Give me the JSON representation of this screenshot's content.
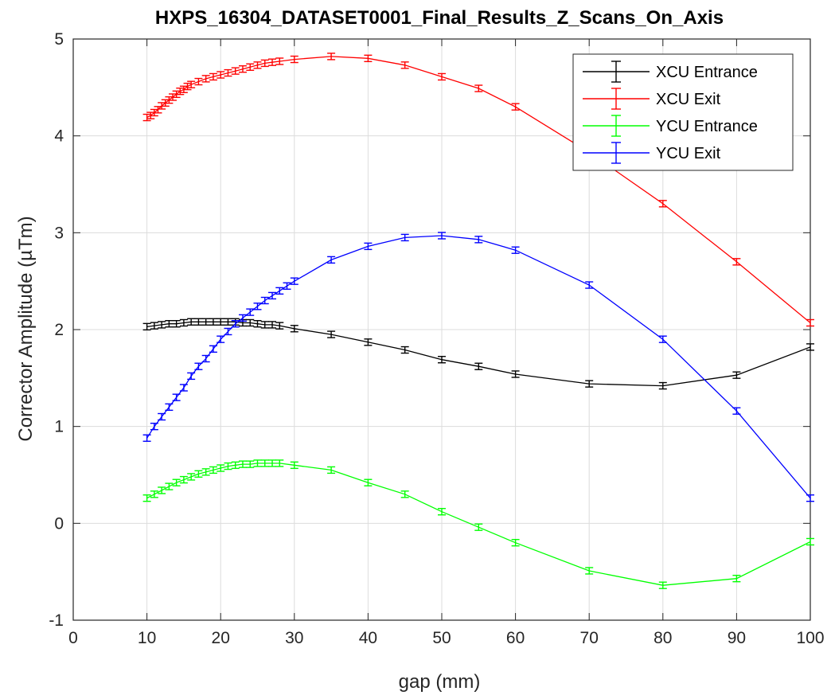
{
  "chart_data": {
    "type": "line",
    "title": "HXPS_16304_DATASET0001_Final_Results_Z_Scans_On_Axis",
    "xlabel": "gap (mm)",
    "ylabel": "Corrector Amplitude (µTm)",
    "xlim": [
      0,
      100
    ],
    "ylim": [
      -1,
      5
    ],
    "xticks": [
      0,
      10,
      20,
      30,
      40,
      50,
      60,
      70,
      80,
      90,
      100
    ],
    "yticks": [
      -1,
      0,
      1,
      2,
      3,
      4,
      5
    ],
    "grid": true,
    "legend_position": "top-right",
    "series": [
      {
        "name": "XCU Entrance",
        "color": "#000000",
        "x": [
          10,
          11,
          12,
          13,
          14,
          15,
          16,
          17,
          18,
          19,
          20,
          21,
          22,
          23,
          24,
          25,
          26,
          27,
          28,
          30,
          35,
          40,
          45,
          50,
          55,
          60,
          70,
          80,
          90,
          100
        ],
        "y": [
          2.03,
          2.04,
          2.05,
          2.06,
          2.06,
          2.07,
          2.08,
          2.08,
          2.08,
          2.08,
          2.08,
          2.08,
          2.08,
          2.07,
          2.07,
          2.06,
          2.05,
          2.05,
          2.04,
          2.01,
          1.95,
          1.87,
          1.79,
          1.69,
          1.62,
          1.54,
          1.44,
          1.42,
          1.53,
          1.82
        ]
      },
      {
        "name": "XCU Exit",
        "color": "#ff0000",
        "x": [
          10,
          10.5,
          11,
          11.5,
          12,
          12.5,
          13,
          13.5,
          14,
          14.5,
          15,
          15.5,
          16,
          17,
          18,
          19,
          20,
          21,
          22,
          23,
          24,
          25,
          26,
          27,
          28,
          30,
          35,
          40,
          45,
          50,
          55,
          60,
          70,
          80,
          90,
          100
        ],
        "y": [
          4.19,
          4.21,
          4.24,
          4.27,
          4.31,
          4.34,
          4.37,
          4.4,
          4.43,
          4.46,
          4.48,
          4.51,
          4.53,
          4.56,
          4.59,
          4.61,
          4.63,
          4.65,
          4.67,
          4.69,
          4.71,
          4.73,
          4.75,
          4.76,
          4.77,
          4.79,
          4.82,
          4.8,
          4.73,
          4.61,
          4.49,
          4.3,
          3.83,
          3.3,
          2.7,
          2.07
        ]
      },
      {
        "name": "YCU Entrance",
        "color": "#00ff00",
        "x": [
          10,
          11,
          12,
          13,
          14,
          15,
          16,
          17,
          18,
          19,
          20,
          21,
          22,
          23,
          24,
          25,
          26,
          27,
          28,
          30,
          35,
          40,
          45,
          50,
          55,
          60,
          70,
          80,
          90,
          100
        ],
        "y": [
          0.26,
          0.3,
          0.34,
          0.38,
          0.42,
          0.45,
          0.48,
          0.51,
          0.53,
          0.55,
          0.57,
          0.59,
          0.6,
          0.61,
          0.61,
          0.62,
          0.62,
          0.62,
          0.62,
          0.6,
          0.55,
          0.42,
          0.3,
          0.12,
          -0.04,
          -0.2,
          -0.49,
          -0.64,
          -0.57,
          -0.19
        ]
      },
      {
        "name": "YCU Exit",
        "color": "#0000ff",
        "x": [
          10,
          11,
          12,
          13,
          14,
          15,
          16,
          17,
          18,
          19,
          20,
          21,
          22,
          23,
          24,
          25,
          26,
          27,
          28,
          29,
          30,
          35,
          40,
          45,
          50,
          55,
          60,
          70,
          80,
          90,
          100
        ],
        "y": [
          0.88,
          1.0,
          1.1,
          1.2,
          1.3,
          1.4,
          1.52,
          1.62,
          1.7,
          1.8,
          1.9,
          1.98,
          2.06,
          2.12,
          2.18,
          2.24,
          2.3,
          2.35,
          2.4,
          2.45,
          2.5,
          2.72,
          2.86,
          2.95,
          2.97,
          2.93,
          2.82,
          2.46,
          1.9,
          1.16,
          0.26
        ]
      }
    ]
  }
}
